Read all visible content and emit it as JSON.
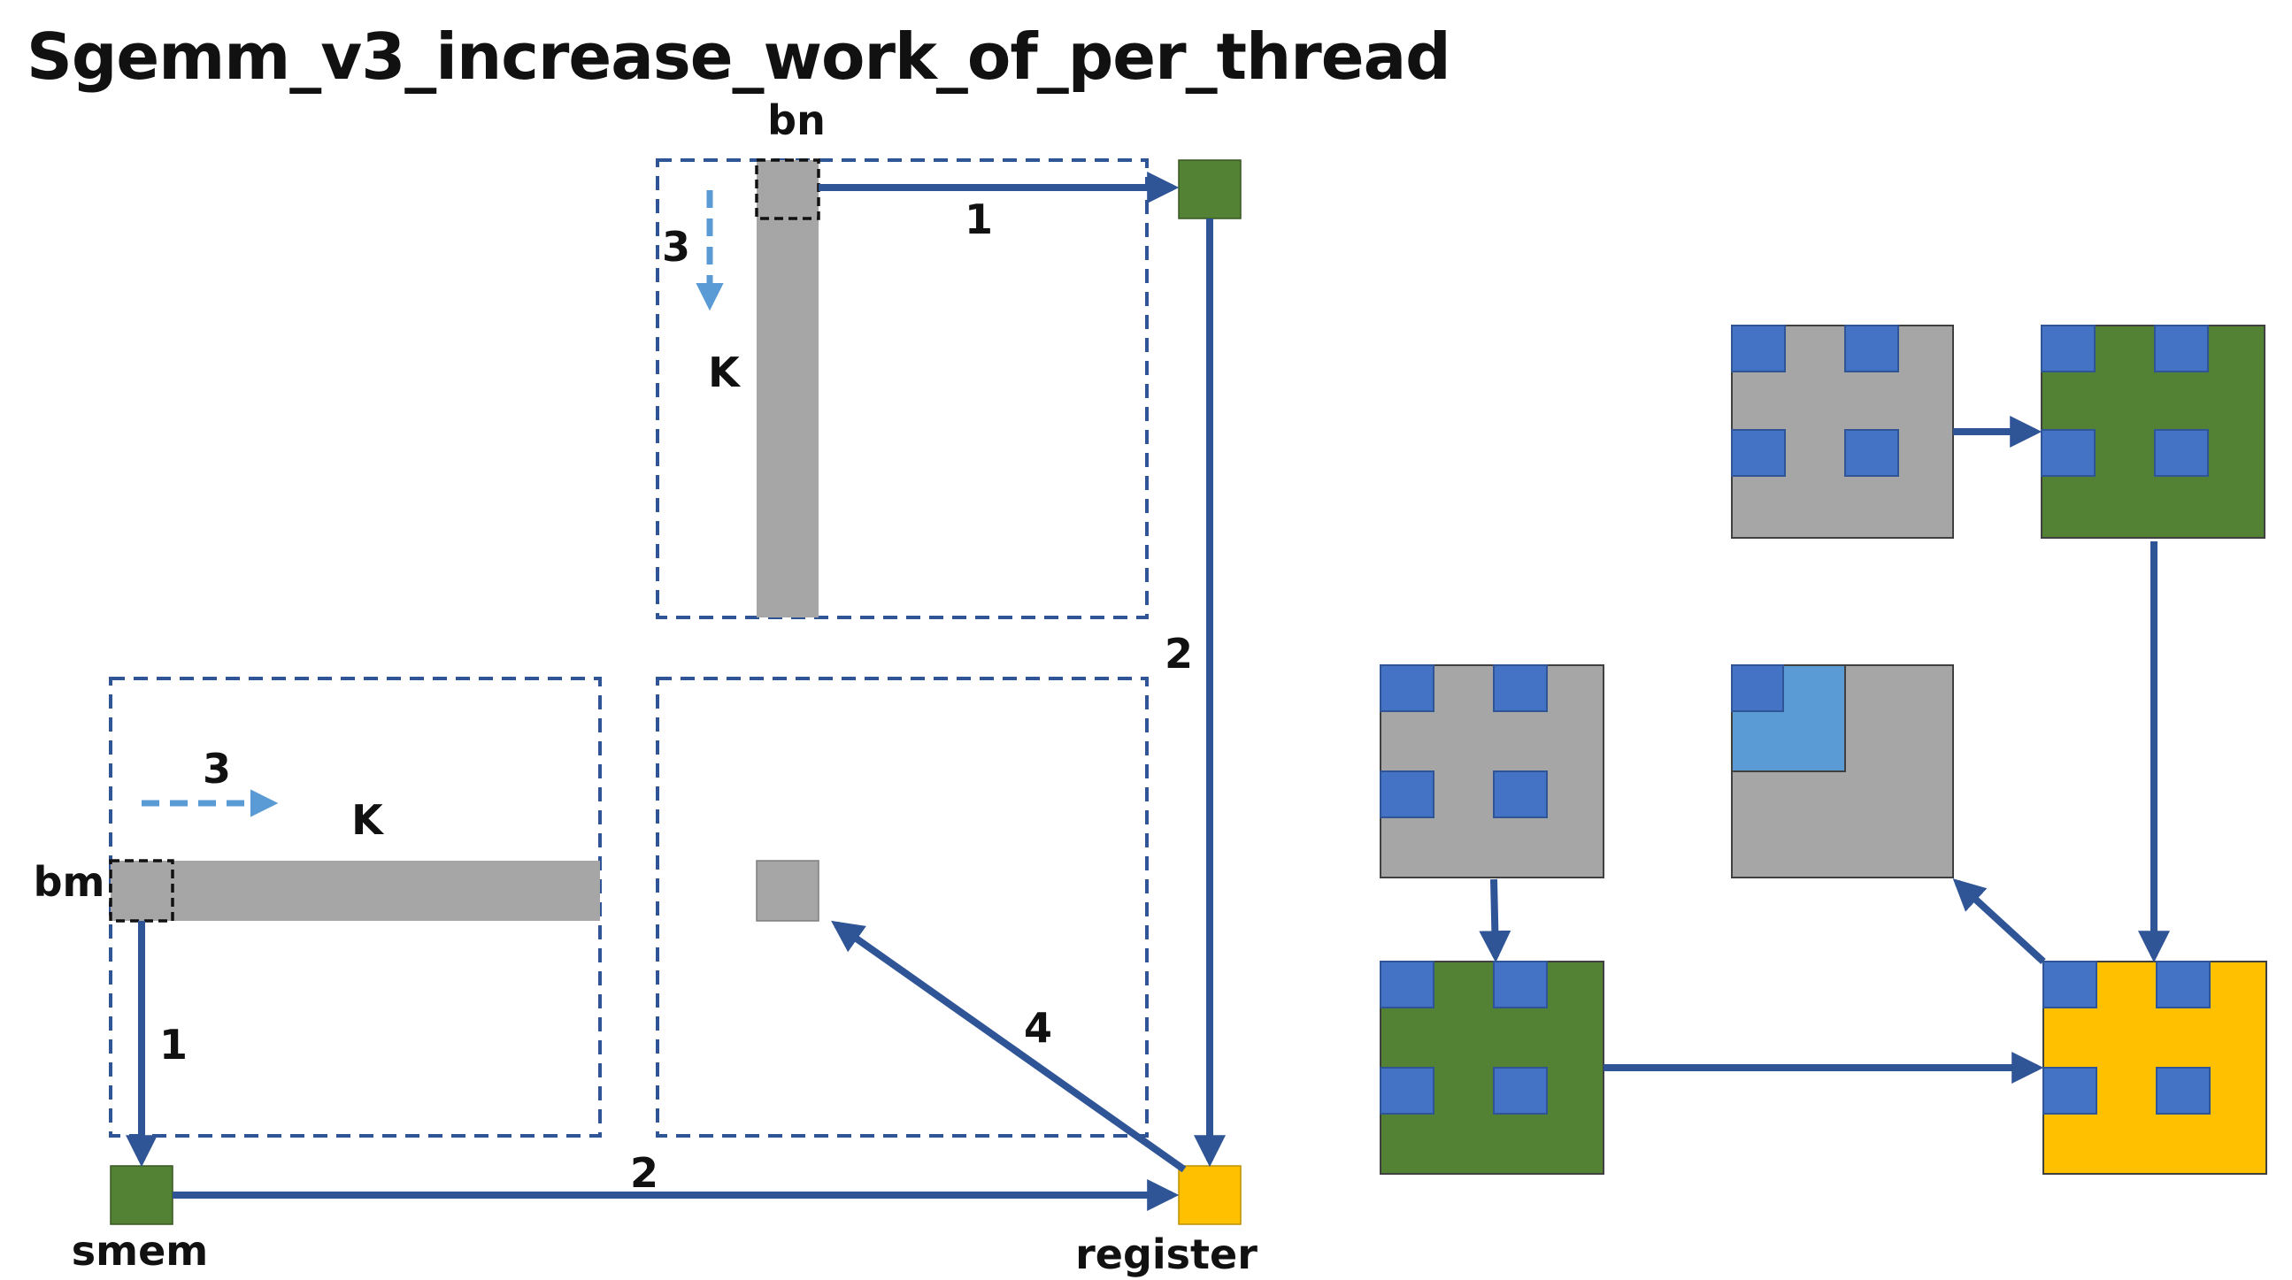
{
  "title": "Sgemm_v3_increase_work_of_per_thread",
  "labels": {
    "bn": "bn",
    "bm": "bm",
    "k_top": "K",
    "k_left": "K",
    "smem": "smem",
    "register": "register",
    "step_1_top": "1",
    "step_1_left": "1",
    "step_2_right": "2",
    "step_2_bottom": "2",
    "step_3_top": "3",
    "step_3_left": "3",
    "step_4": "4"
  },
  "colors": {
    "gray": "#a6a6a6",
    "green": "#548235",
    "yellow": "#ffc000",
    "blue": "#4472c4",
    "light_blue": "#5b9bd5",
    "arrow": "#2f5597",
    "dashed_box": "#2f5597"
  }
}
